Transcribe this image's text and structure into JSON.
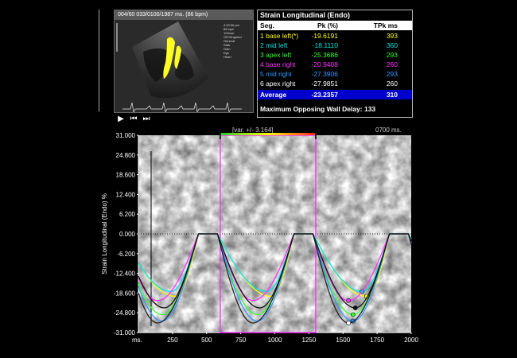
{
  "echo": {
    "header": "004/60  033/0100/1987 ms.  (86 bpm)",
    "info": [
      "4:29:36 pm",
      "86 bpm",
      "100mm",
      "GE/Vingmed",
      "General",
      "",
      "Stab",
      "Gain",
      "",
      "Dyn",
      "Heart",
      ""
    ]
  },
  "transport": {
    "play_icon": "▶",
    "prev_icon": "⏮",
    "next_icon": "⏭"
  },
  "table": {
    "title": "Strain Longitudinal (Endo)",
    "headers": {
      "seg": "Seg.",
      "pk": "Pk (%)",
      "tpk": "TPk ms"
    },
    "rows": [
      {
        "seg": "1 base left(*)",
        "pk": "-19.6191",
        "tpk": "393",
        "color": "#ffff00"
      },
      {
        "seg": "2 mid left",
        "pk": "-18.1110",
        "tpk": "360",
        "color": "#00e5e5"
      },
      {
        "seg": "3 apex left",
        "pk": "-25.3686",
        "tpk": "293",
        "color": "#33ff33"
      },
      {
        "seg": "4 base right",
        "pk": "-20.9408",
        "tpk": "260",
        "color": "#ff33ff"
      },
      {
        "seg": "5 mid right",
        "pk": "-27.3906",
        "tpk": "293",
        "color": "#3399ff"
      },
      {
        "seg": "6 apex right",
        "pk": "-27.9851",
        "tpk": "260",
        "color": "#ffffff"
      }
    ],
    "average": {
      "seg": "Average",
      "pk": "-23.2357",
      "tpk": "310"
    },
    "delay_text": "Maximum Opposing Wall Delay: 133"
  },
  "plot": {
    "var_label": "[var. +/- 3.164]",
    "time_label": "0700 ms.",
    "x_unit": "ms.",
    "ylabel": "Strain Longitudinal (Endo)  %",
    "yticks": [
      "31.000",
      "24.800",
      "18.600",
      "12.400",
      "6.200",
      "0.000",
      "-6.200",
      "-12.400",
      "-18.600",
      "-24.800",
      "-31.000"
    ],
    "xticks": [
      "250",
      "500",
      "750",
      "1000",
      "1250",
      "1500",
      "1750",
      "2000"
    ]
  },
  "chart_data": {
    "type": "line",
    "ylabel": "Strain Longitudinal (Endo)  %",
    "ylim": [
      -31.0,
      31.0
    ],
    "xlim": [
      0,
      2000
    ],
    "cycle_ms": 700,
    "selection_ms": [
      600,
      1300
    ],
    "series": [
      {
        "name": "1 base left(*)",
        "color": "#ffff00",
        "peak": -19.6191,
        "tpk": 393
      },
      {
        "name": "2 mid left",
        "color": "#00e5e5",
        "peak": -18.111,
        "tpk": 360
      },
      {
        "name": "3 apex left",
        "color": "#33ff33",
        "peak": -25.3686,
        "tpk": 293
      },
      {
        "name": "4 base right",
        "color": "#ff33ff",
        "peak": -20.9408,
        "tpk": 260
      },
      {
        "name": "5 mid right",
        "color": "#3399ff",
        "peak": -27.3906,
        "tpk": 293
      },
      {
        "name": "6 apex right",
        "color": "#ffffff",
        "peak": -27.9851,
        "tpk": 260
      },
      {
        "name": "Average",
        "color": "#111111",
        "peak": -23.2357,
        "tpk": 310
      }
    ]
  }
}
